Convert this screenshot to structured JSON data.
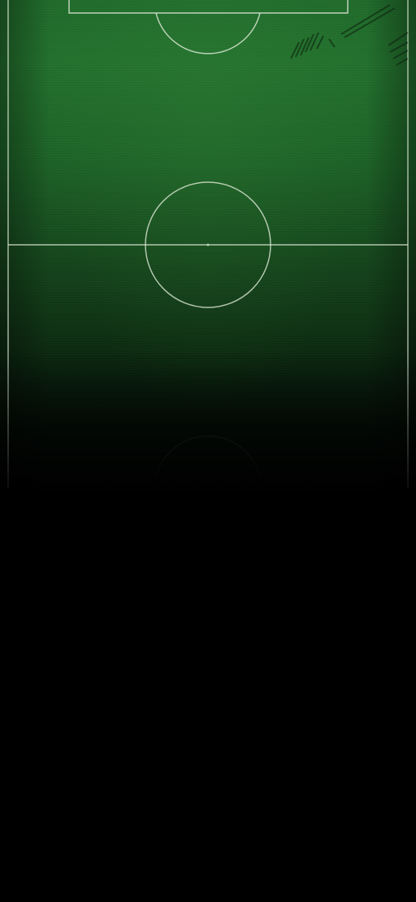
{
  "screen": {
    "background_color": "#000000",
    "pitch_color": "#1f6a2a",
    "line_color": "#d9e6d2"
  }
}
